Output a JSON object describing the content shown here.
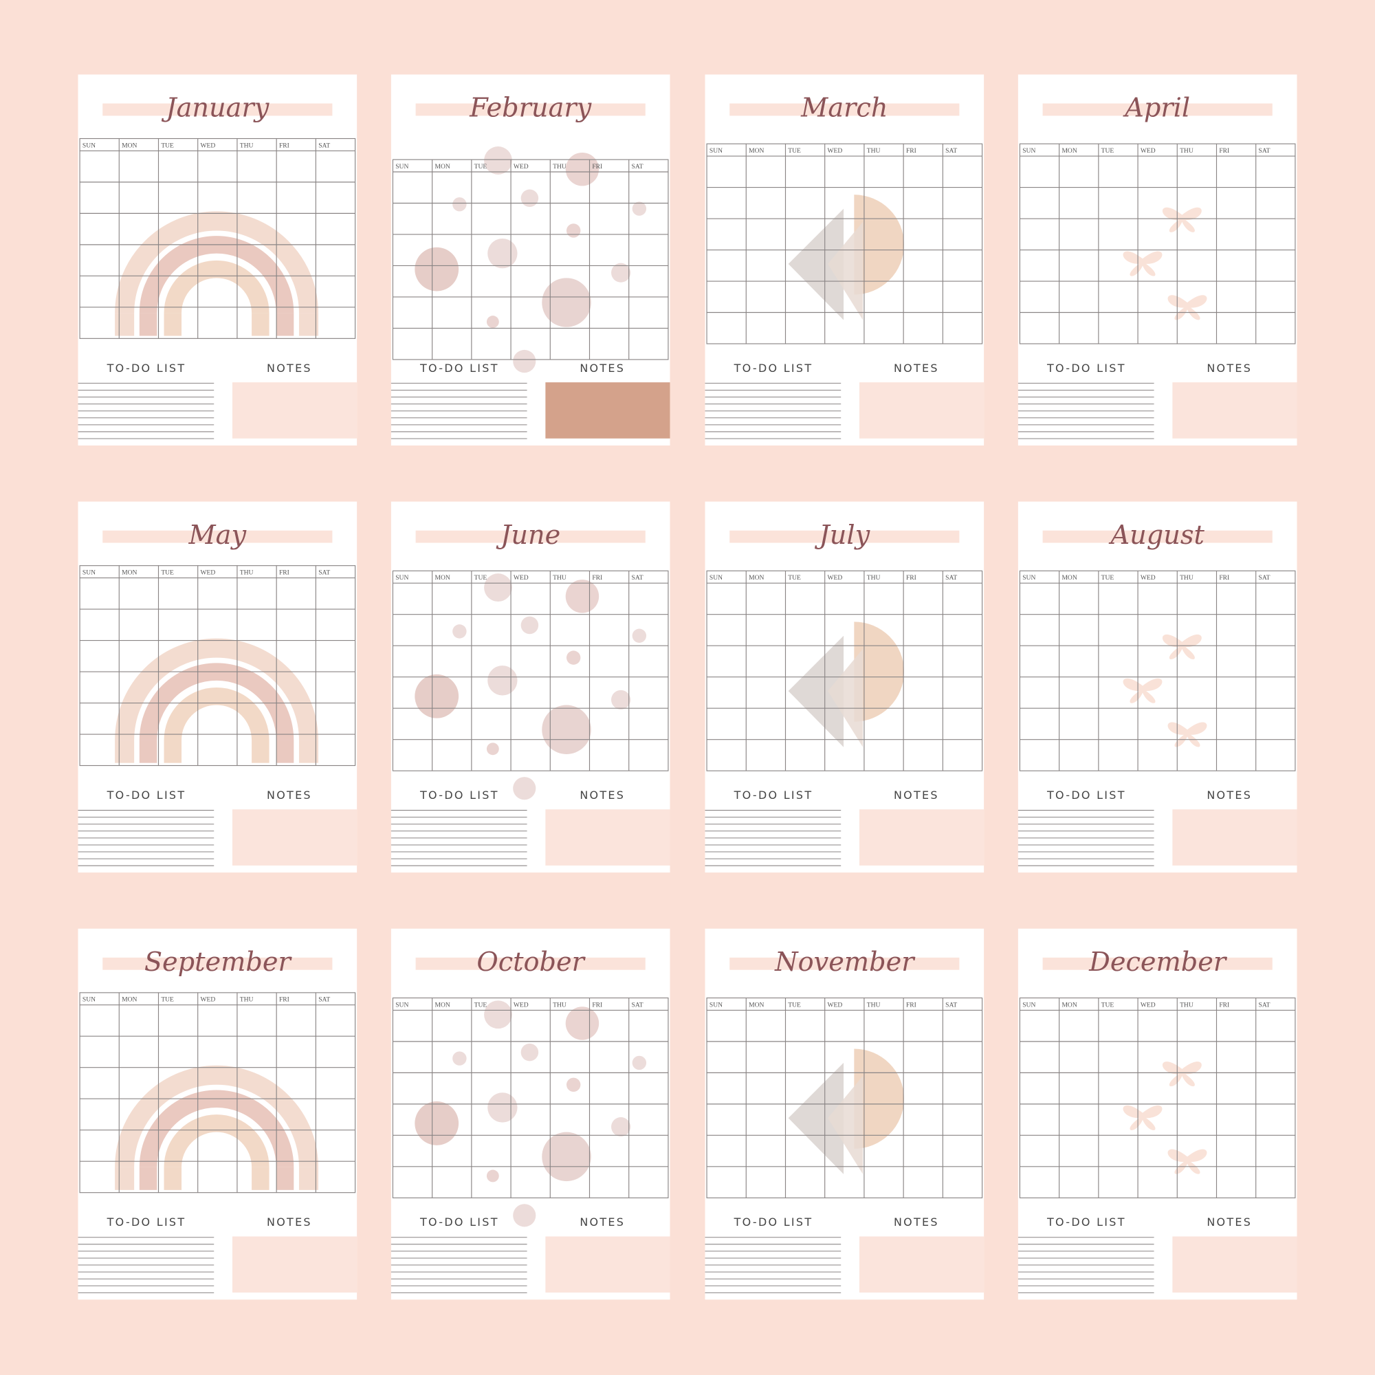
{
  "pages": [
    {
      "month": "January",
      "weekdays": [
        "SUN",
        "MON",
        "TUE",
        "WED",
        "THU",
        "FRI",
        "SAT"
      ],
      "todo": "TO-DO LIST",
      "notes": "NOTES"
    },
    {
      "month": "February",
      "weekdays": [
        "SUN",
        "MON",
        "TUE",
        "WED",
        "THU",
        "FRI",
        "SAT"
      ],
      "todo": "TO-DO LIST",
      "notes": "NOTES"
    },
    {
      "month": "March",
      "weekdays": [
        "SUN",
        "MON",
        "TUE",
        "WED",
        "THU",
        "FRI",
        "SAT"
      ],
      "todo": "TO-DO LIST",
      "notes": "NOTES"
    },
    {
      "month": "April",
      "weekdays": [
        "SUN",
        "MON",
        "TUE",
        "WED",
        "THU",
        "FRI",
        "SAT"
      ],
      "todo": "TO-DO LIST",
      "notes": "NOTES"
    },
    {
      "month": "May",
      "weekdays": [
        "SUN",
        "MON",
        "TUE",
        "WED",
        "THU",
        "FRI",
        "SAT"
      ],
      "todo": "TO-DO LIST",
      "notes": "NOTES"
    },
    {
      "month": "June",
      "weekdays": [
        "SUN",
        "MON",
        "TUE",
        "WED",
        "THU",
        "FRI",
        "SAT"
      ],
      "todo": "TO-DO LIST",
      "notes": "NOTES"
    },
    {
      "month": "July",
      "weekdays": [
        "SUN",
        "MON",
        "TUE",
        "WED",
        "THU",
        "FRI",
        "SAT"
      ],
      "todo": "TO-DO LIST",
      "notes": "NOTES"
    },
    {
      "month": "August",
      "weekdays": [
        "SUN",
        "MON",
        "TUE",
        "WED",
        "THU",
        "FRI",
        "SAT"
      ],
      "todo": "TO-DO LIST",
      "notes": "NOTES"
    },
    {
      "month": "September",
      "weekdays": [
        "SUN",
        "MON",
        "TUE",
        "WED",
        "THU",
        "FRI",
        "SAT"
      ],
      "todo": "TO-DO LIST",
      "notes": "NOTES"
    },
    {
      "month": "October",
      "weekdays": [
        "SUN",
        "MON",
        "TUE",
        "WED",
        "THU",
        "FRI",
        "SAT"
      ],
      "todo": "TO-DO LIST",
      "notes": "NOTES"
    },
    {
      "month": "November",
      "weekdays": [
        "SUN",
        "MON",
        "TUE",
        "WED",
        "THU",
        "FRI",
        "SAT"
      ],
      "todo": "TO-DO LIST",
      "notes": "NOTES"
    },
    {
      "month": "December",
      "weekdays": [
        "SUN",
        "MON",
        "TUE",
        "WED",
        "THU",
        "FRI",
        "SAT"
      ],
      "todo": "TO-DO LIST",
      "notes": "NOTES"
    }
  ]
}
